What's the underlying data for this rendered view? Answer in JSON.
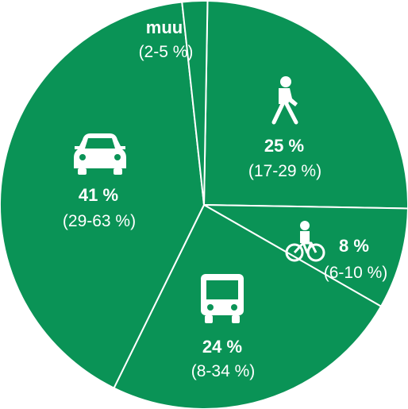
{
  "chart_data": {
    "type": "pie",
    "colors": {
      "slice": "#0a9356",
      "divider": "#ffffff",
      "text": "#ffffff"
    },
    "slices": [
      {
        "key": "walk",
        "icon": "pedestrian-icon",
        "label": "",
        "value": 25,
        "value_text": "25 %",
        "range_text": "(17-29 %)"
      },
      {
        "key": "bike",
        "icon": "bicycle-icon",
        "label": "",
        "value": 8,
        "value_text": "8 %",
        "range_text": "(6-10 %)"
      },
      {
        "key": "bus",
        "icon": "bus-icon",
        "label": "",
        "value": 24,
        "value_text": "24 %",
        "range_text": "(8-34 %)"
      },
      {
        "key": "car",
        "icon": "car-icon",
        "label": "",
        "value": 41,
        "value_text": "41 %",
        "range_text": "(29-63 %)"
      },
      {
        "key": "other",
        "icon": "",
        "label": "muu",
        "value": 2,
        "value_text": "",
        "range_text": "(2-5 %)"
      }
    ]
  }
}
